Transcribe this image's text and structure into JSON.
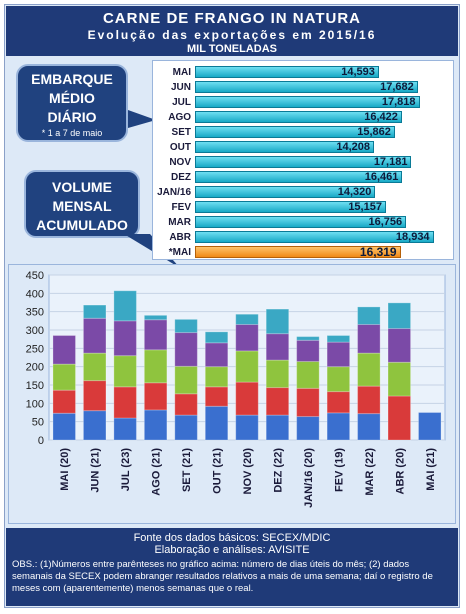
{
  "header": {
    "title": "CARNE DE FRANGO IN NATURA",
    "subtitle": "Evolução das exportações em 2015/16",
    "unit": "MIL TONELADAS"
  },
  "callouts": {
    "embarque": [
      "EMBARQUE",
      "MÉDIO",
      "DIÁRIO"
    ],
    "embarque_note": "* 1 a 7 de maio",
    "volume": [
      "VOLUME",
      "MENSAL",
      "ACUMULADO"
    ]
  },
  "chart_data": [
    {
      "type": "bar",
      "orientation": "horizontal",
      "categories": [
        "MAI",
        "JUN",
        "JUL",
        "AGO",
        "SET",
        "OUT",
        "NOV",
        "DEZ",
        "JAN/16",
        "FEV",
        "MAR",
        "ABR",
        "*MAI"
      ],
      "values": [
        14593,
        17682,
        17818,
        16422,
        15862,
        14208,
        17181,
        16461,
        14320,
        15157,
        16756,
        18934,
        16319
      ],
      "value_labels": [
        "14,593",
        "17,682",
        "17,818",
        "16,422",
        "15,862",
        "14,208",
        "17,181",
        "16,461",
        "14,320",
        "15,157",
        "16,756",
        "18,934",
        "16,319"
      ],
      "xlim": [
        0,
        20000
      ],
      "highlight": "*MAI",
      "colors": {
        "bar": "#18a9c6",
        "highlight": "#f08a17"
      }
    },
    {
      "type": "bar",
      "stacked": true,
      "categories": [
        "MAI (20)",
        "JUN (21)",
        "JUL (23)",
        "AGO (21)",
        "SET (21)",
        "OUT (21)",
        "NOV (20)",
        "DEZ (22)",
        "JAN/16 (20)",
        "FEV (19)",
        "MAR (22)",
        "ABR (20)",
        "MAI (21)"
      ],
      "ylim": [
        0,
        450
      ],
      "yticks": [
        0,
        50,
        100,
        150,
        200,
        250,
        300,
        350,
        400,
        450
      ],
      "segments": [
        {
          "color": "#3a6fcf",
          "values": [
            73,
            80,
            60,
            82,
            68,
            92,
            68,
            68,
            64,
            74,
            72,
            0,
            75
          ]
        },
        {
          "color": "#d93a3a",
          "values": [
            63,
            82,
            85,
            74,
            58,
            53,
            90,
            75,
            77,
            58,
            75,
            120,
            0
          ]
        },
        {
          "color": "#8fc43e",
          "values": [
            71,
            75,
            85,
            90,
            75,
            55,
            85,
            75,
            73,
            68,
            90,
            92,
            0
          ]
        },
        {
          "color": "#7b4aa7",
          "values": [
            78,
            95,
            95,
            82,
            92,
            65,
            72,
            72,
            58,
            67,
            78,
            92,
            0
          ]
        },
        {
          "color": "#3aa8c4",
          "values": [
            0,
            36,
            82,
            12,
            36,
            30,
            28,
            67,
            10,
            18,
            48,
            70,
            0
          ]
        }
      ],
      "totals": [
        285,
        368,
        407,
        340,
        329,
        295,
        343,
        357,
        282,
        285,
        363,
        374,
        75
      ]
    }
  ],
  "footer": {
    "source": "Fonte dos dados básicos: SECEX/MDIC",
    "elab": "Elaboração e análises: AVISITE",
    "obs": "OBS.: (1)Números entre parênteses no gráfico acima: número de dias úteis do mês; (2) dados semanais da SECEX podem abranger resultados relativos a mais de uma semana; daí o registro de meses com (aparentemente) menos semanas que o real."
  }
}
